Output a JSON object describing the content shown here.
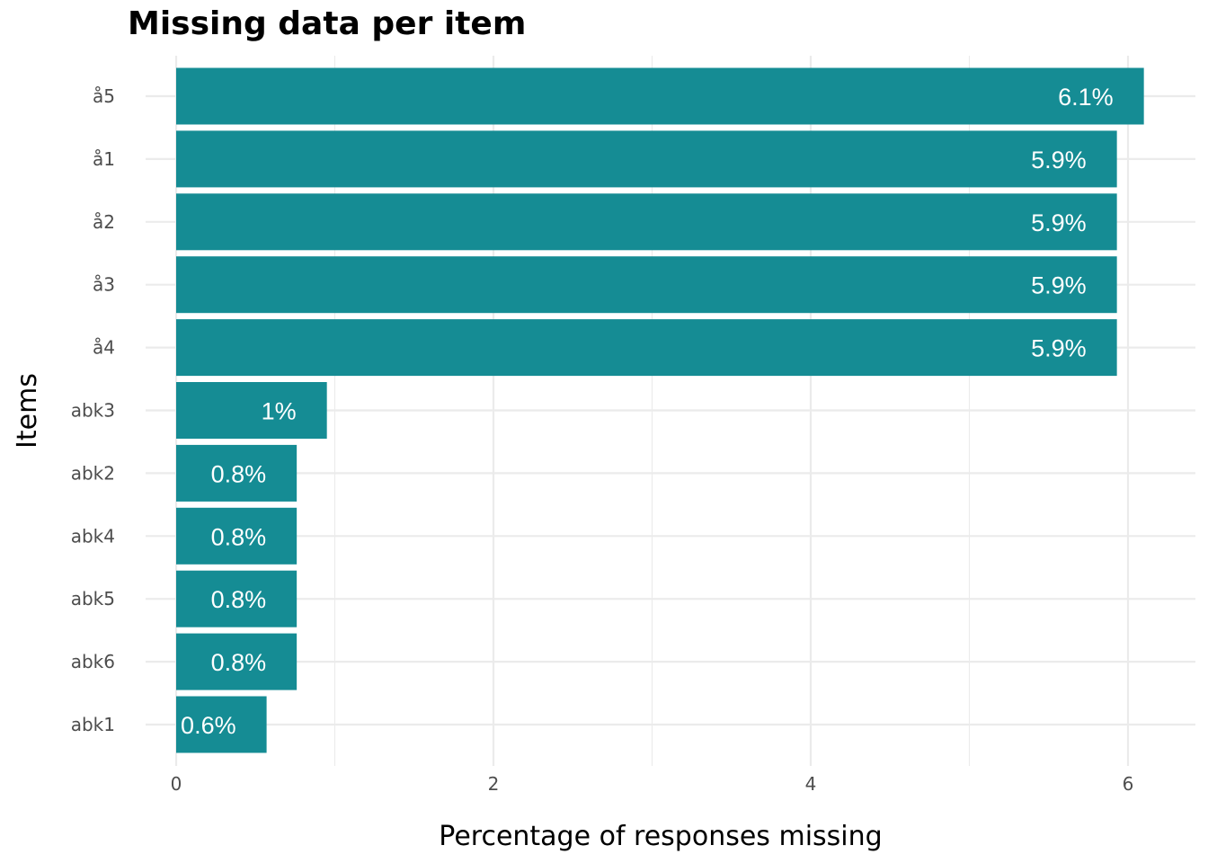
{
  "chart_data": {
    "type": "bar",
    "orientation": "horizontal",
    "title": "Missing data per item",
    "xlabel": "Percentage of responses missing",
    "ylabel": "Items",
    "categories": [
      "å5",
      "å1",
      "å2",
      "å3",
      "å4",
      "abk3",
      "abk2",
      "abk4",
      "abk5",
      "abk6",
      "abk1"
    ],
    "values": [
      6.1,
      5.93,
      5.93,
      5.93,
      5.93,
      0.95,
      0.76,
      0.76,
      0.76,
      0.76,
      0.57
    ],
    "value_labels": [
      "6.1%",
      "5.9%",
      "5.9%",
      "5.9%",
      "5.9%",
      "1%",
      "0.8%",
      "0.8%",
      "0.8%",
      "0.8%",
      "0.6%"
    ],
    "xlim": [
      -0.3,
      6.3
    ],
    "xticks": [
      0,
      2,
      4,
      6
    ],
    "xtick_labels": [
      "0",
      "2",
      "4",
      "6"
    ],
    "grid": true,
    "legend": "none",
    "bar_color": "#158c94",
    "grid_color": "#ebebeb"
  }
}
